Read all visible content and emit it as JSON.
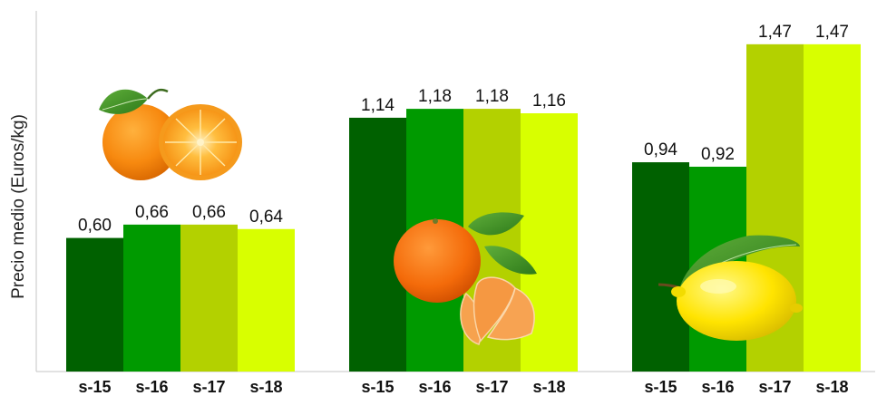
{
  "chart_data": {
    "type": "bar",
    "ylabel": "Precio medio (Euros/kg)",
    "xlabel": "",
    "title": "",
    "ylim": [
      0,
      1.62
    ],
    "grid": false,
    "legend": "none",
    "group_icons": [
      "orange-fruit",
      "mandarin-fruit",
      "lemon-fruit"
    ],
    "series_names": [
      "s-15",
      "s-16",
      "s-17",
      "s-18"
    ],
    "series_colors": [
      "#006100",
      "#009a00",
      "#b3d100",
      "#d8ff00"
    ],
    "groups": [
      {
        "values": [
          0.6,
          0.66,
          0.66,
          0.64
        ],
        "labels": [
          "0,60",
          "0,66",
          "0,66",
          "0,64"
        ]
      },
      {
        "values": [
          1.14,
          1.18,
          1.18,
          1.16
        ],
        "labels": [
          "1,14",
          "1,18",
          "1,18",
          "1,16"
        ]
      },
      {
        "values": [
          0.94,
          0.92,
          1.47,
          1.47
        ],
        "labels": [
          "0,94",
          "0,92",
          "1,47",
          "1,47"
        ]
      }
    ]
  }
}
